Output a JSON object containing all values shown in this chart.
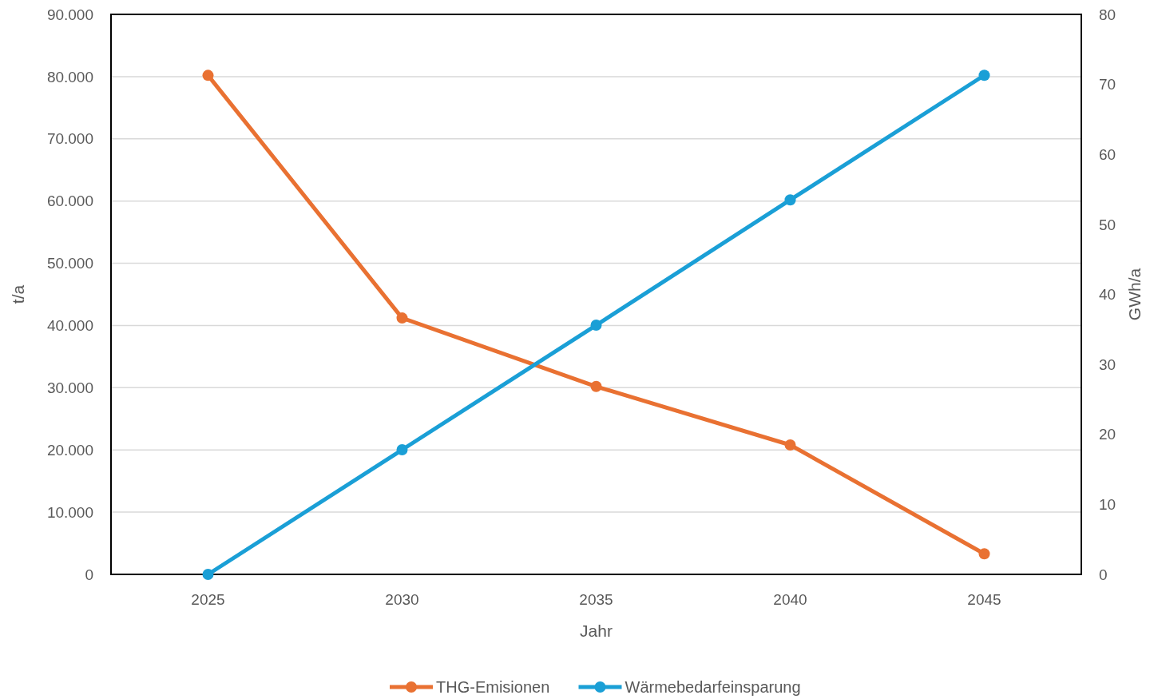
{
  "chart_data": {
    "type": "line",
    "xlabel": "Jahr",
    "ylabel": "t/a",
    "y2label": "GWh/a",
    "categories": [
      "2025",
      "2030",
      "2035",
      "2040",
      "2045"
    ],
    "series": [
      {
        "name": "THG-Emisionen",
        "color": "#e97132",
        "values": [
          80200,
          41200,
          30200,
          20800,
          3300
        ]
      },
      {
        "name": "Wärmebedarfeinsparung",
        "color": "#1a9fd6",
        "axis": "y2",
        "values": [
          0,
          17.8,
          35.6,
          53.5,
          71.3
        ]
      }
    ],
    "ylim": [
      0,
      90000
    ],
    "yticks": [
      {
        "value": 0,
        "label": "0"
      },
      {
        "value": 10000,
        "label": "10.000"
      },
      {
        "value": 20000,
        "label": "20.000"
      },
      {
        "value": 30000,
        "label": "30.000"
      },
      {
        "value": 40000,
        "label": "40.000"
      },
      {
        "value": 50000,
        "label": "50.000"
      },
      {
        "value": 60000,
        "label": "60.000"
      },
      {
        "value": 70000,
        "label": "70.000"
      },
      {
        "value": 80000,
        "label": "80.000"
      },
      {
        "value": 90000,
        "label": "90.000"
      }
    ],
    "y2lim": [
      0,
      80
    ],
    "y2ticks": [
      0,
      10,
      20,
      30,
      40,
      50,
      60,
      70,
      80
    ],
    "grid": "y",
    "legend": "bottom",
    "marker": "circle",
    "line_style": "solid"
  }
}
